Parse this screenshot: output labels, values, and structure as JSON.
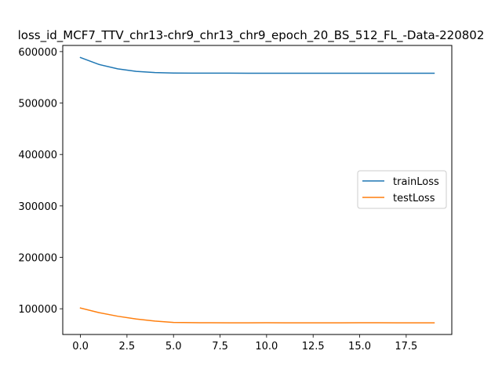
{
  "chart_data": {
    "type": "line",
    "title": "loss_id_MCF7_TTV_chr13-chr9_chr13_chr9_epoch_20_BS_512_FL_-Data-220802",
    "xlabel": "",
    "ylabel": "",
    "xlim": [
      -0.95,
      19.95
    ],
    "ylim": [
      50000,
      612000
    ],
    "x_ticks": [
      0,
      2.5,
      5,
      7.5,
      10,
      12.5,
      15,
      17.5
    ],
    "x_tick_labels": [
      "0.0",
      "2.5",
      "5.0",
      "7.5",
      "10.0",
      "12.5",
      "15.0",
      "17.5"
    ],
    "y_ticks": [
      100000,
      200000,
      300000,
      400000,
      500000,
      600000
    ],
    "y_tick_labels": [
      "100000",
      "200000",
      "300000",
      "400000",
      "500000",
      "600000"
    ],
    "legend_position": "center-right",
    "grid": false,
    "x": [
      0,
      1,
      2,
      3,
      4,
      5,
      6,
      7,
      8,
      9,
      10,
      11,
      12,
      13,
      14,
      15,
      16,
      17,
      18,
      19
    ],
    "series": [
      {
        "name": "trainLoss",
        "color": "#1f77b4",
        "values": [
          588500,
          575000,
          566500,
          561500,
          559200,
          558400,
          558200,
          558100,
          558050,
          558000,
          558000,
          558000,
          558000,
          558000,
          558000,
          558000,
          558000,
          558000,
          558000,
          558000
        ]
      },
      {
        "name": "testLoss",
        "color": "#ff7f0e",
        "values": [
          101500,
          92500,
          85500,
          80000,
          76000,
          73500,
          73000,
          72800,
          72600,
          72600,
          72900,
          72700,
          72700,
          72700,
          72600,
          72800,
          72800,
          72600,
          72600,
          72700
        ]
      }
    ]
  }
}
